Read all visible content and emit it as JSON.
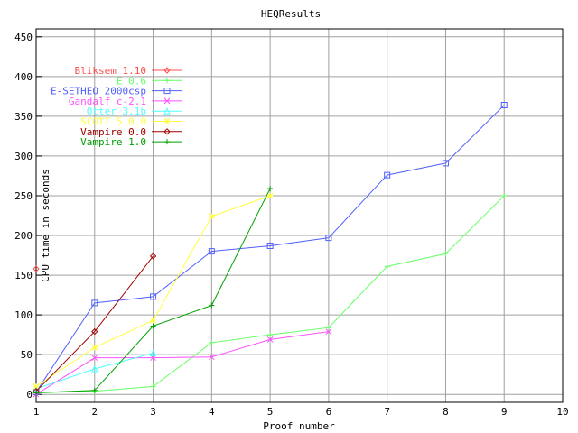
{
  "chart_data": {
    "type": "line",
    "title": "HEQResults",
    "xlabel": "Proof number",
    "ylabel": "CPU time in seconds",
    "xlim": [
      1,
      10
    ],
    "ylim": [
      -10,
      460
    ],
    "xticks": [
      1,
      2,
      3,
      4,
      5,
      6,
      7,
      8,
      9,
      10
    ],
    "yticks": [
      0,
      50,
      100,
      150,
      200,
      250,
      300,
      350,
      400,
      450
    ],
    "grid": true,
    "legend_placement": "top-left",
    "series": [
      {
        "name": "Bliksem 1.10",
        "color": "#ff4d4d",
        "marker": "diamond",
        "x": [
          1
        ],
        "y": [
          158
        ]
      },
      {
        "name": "E 0.6",
        "color": "#66ff66",
        "marker": "plus",
        "x": [
          1,
          2,
          3,
          4,
          5,
          6,
          7,
          8,
          9
        ],
        "y": [
          2,
          4,
          10,
          65,
          75,
          84,
          161,
          177,
          250
        ]
      },
      {
        "name": "E-SETHEO 2000csp",
        "color": "#5060ff",
        "marker": "square",
        "x": [
          1,
          2,
          3,
          4,
          5,
          6,
          7,
          8,
          9
        ],
        "y": [
          3,
          115,
          123,
          180,
          187,
          197,
          276,
          291,
          364
        ]
      },
      {
        "name": "Gandalf c-2.1",
        "color": "#ff50ff",
        "marker": "cross",
        "x": [
          1,
          2,
          3,
          4,
          5,
          6
        ],
        "y": [
          0,
          46,
          46,
          47,
          69,
          79
        ]
      },
      {
        "name": "Otter 3.1b",
        "color": "#50ffff",
        "marker": "triangle",
        "x": [
          1,
          2,
          3
        ],
        "y": [
          7,
          32,
          52
        ]
      },
      {
        "name": "SCOTT 5.0.0",
        "color": "#ffff40",
        "marker": "star",
        "x": [
          1,
          2,
          3,
          4,
          5
        ],
        "y": [
          10,
          59,
          93,
          224,
          250
        ]
      },
      {
        "name": "Vampire 0.0",
        "color": "#a00000",
        "marker": "diamond",
        "x": [
          1,
          2,
          3
        ],
        "y": [
          4,
          79,
          174
        ]
      },
      {
        "name": "Vampire 1.0",
        "color": "#00a000",
        "marker": "plus",
        "x": [
          1,
          2,
          3,
          4,
          5
        ],
        "y": [
          2,
          5,
          86,
          112,
          259
        ]
      }
    ]
  }
}
